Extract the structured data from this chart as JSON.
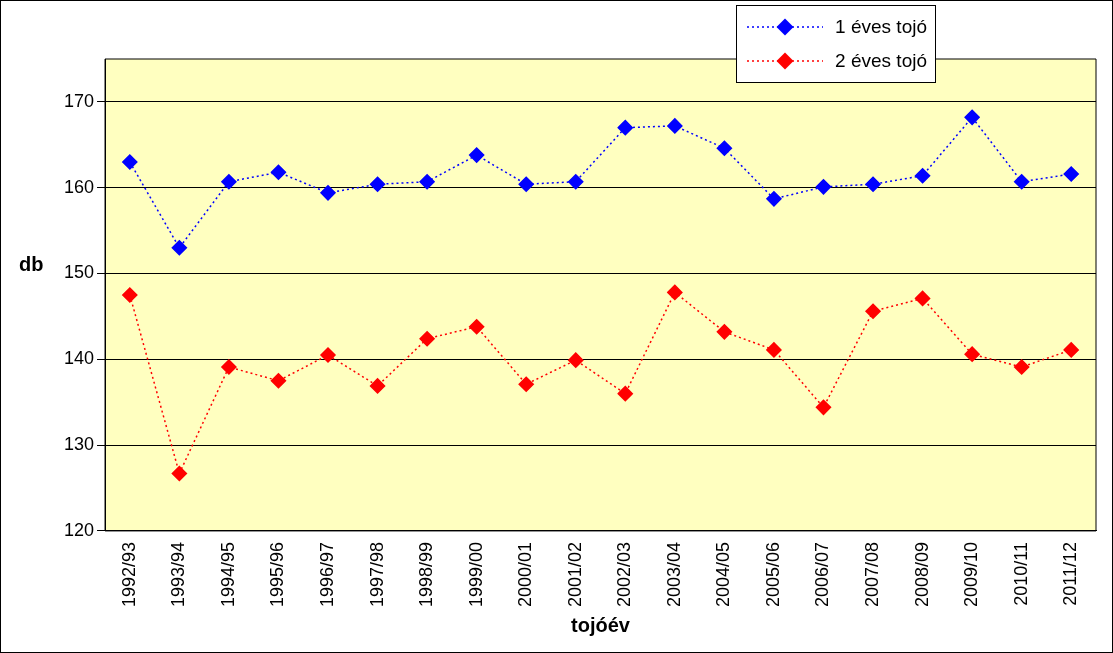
{
  "chart_data": {
    "type": "line",
    "xlabel": "tojóév",
    "ylabel": "db",
    "categories": [
      "1992/93",
      "1993/94",
      "1994/95",
      "1995/96",
      "1996/97",
      "1997/98",
      "1998/99",
      "1999/00",
      "2000/01",
      "2001/02",
      "2002/03",
      "2003/04",
      "2004/05",
      "2005/06",
      "2006/07",
      "2007/08",
      "2008/09",
      "2009/10",
      "2010/11",
      "2011/12"
    ],
    "series": [
      {
        "name": "1 éves tojó",
        "color": "#0000ff",
        "values": [
          163.0,
          153.0,
          160.7,
          161.8,
          159.4,
          160.4,
          160.7,
          163.8,
          160.4,
          160.7,
          167.0,
          167.2,
          164.6,
          158.7,
          160.1,
          160.4,
          161.4,
          168.2,
          160.7,
          161.6
        ]
      },
      {
        "name": "2 éves tojó",
        "color": "#ff0000",
        "values": [
          147.5,
          126.7,
          139.1,
          137.5,
          140.5,
          136.9,
          142.4,
          143.8,
          137.1,
          139.9,
          136.0,
          147.8,
          143.2,
          141.1,
          134.4,
          145.6,
          147.1,
          140.6,
          139.1,
          141.1
        ]
      }
    ],
    "ylim": [
      120,
      175
    ],
    "yticks": [
      120,
      130,
      140,
      150,
      160,
      170
    ],
    "grid": "y",
    "legend": "top right",
    "marker": "diamond",
    "line_style": "dotted"
  }
}
